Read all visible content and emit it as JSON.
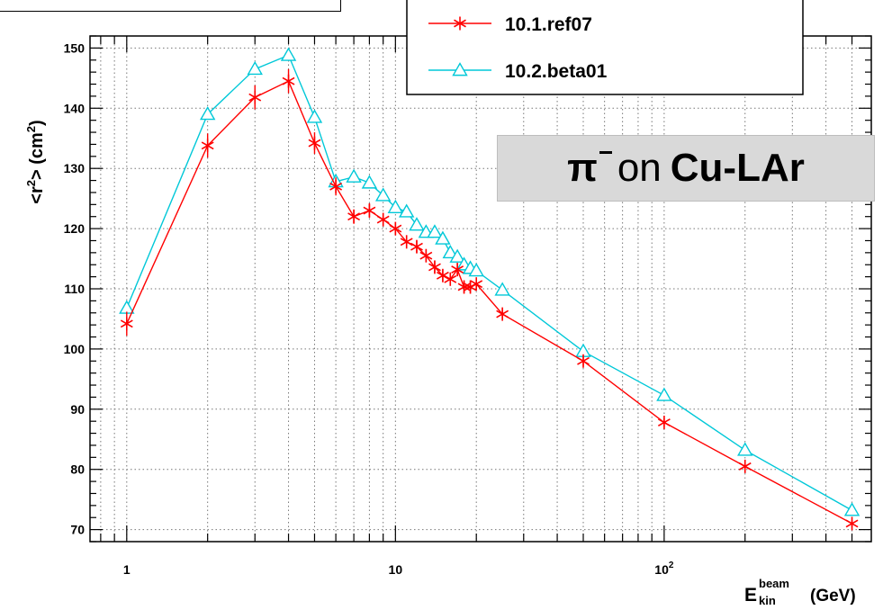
{
  "chart_data": {
    "type": "line",
    "title": "",
    "xlabel": "E_kin^beam (GeV)",
    "xlabel_parts": {
      "base": "E",
      "sup": "beam",
      "sub": "kin",
      "unit": "(GeV)"
    },
    "ylabel": "<r²> (cm²)",
    "ylabel_parts": {
      "pre": "<r",
      "sup1": "2",
      "mid": "> (cm",
      "sup2": "2",
      "post": ")"
    },
    "x_scale": "log",
    "xlim": [
      0.73,
      590
    ],
    "ylim": [
      68,
      152
    ],
    "x_ticks": [
      {
        "value": 1,
        "label": "1"
      },
      {
        "value": 10,
        "label": "10"
      },
      {
        "value": 100,
        "label": "10",
        "sup": "2"
      }
    ],
    "y_ticks": [
      70,
      80,
      90,
      100,
      110,
      120,
      130,
      140,
      150
    ],
    "grid": true,
    "legend_position": "top-center",
    "annotation": {
      "particle": "π",
      "word": "on",
      "target": "Cu-LAr"
    },
    "series": [
      {
        "name": "10.1.ref07",
        "color": "#ff0000",
        "marker": "star",
        "points": [
          {
            "x": 1,
            "y": 104.2,
            "err": 2.0
          },
          {
            "x": 2,
            "y": 133.8,
            "err": 2.0
          },
          {
            "x": 3,
            "y": 141.8,
            "err": 2.0
          },
          {
            "x": 4,
            "y": 144.5,
            "err": 2.0
          },
          {
            "x": 5,
            "y": 134.2,
            "err": 1.8
          },
          {
            "x": 6,
            "y": 127.0,
            "err": 1.5
          },
          {
            "x": 7,
            "y": 122.0,
            "err": 1.2
          },
          {
            "x": 8,
            "y": 123.0,
            "err": 1.2
          },
          {
            "x": 9,
            "y": 121.5,
            "err": 1.0
          },
          {
            "x": 10,
            "y": 120.0,
            "err": 1.0
          },
          {
            "x": 11,
            "y": 117.8,
            "err": 1.0
          },
          {
            "x": 12,
            "y": 117.0,
            "err": 1.0
          },
          {
            "x": 13,
            "y": 115.5,
            "err": 1.0
          },
          {
            "x": 14,
            "y": 113.6,
            "err": 1.0
          },
          {
            "x": 15,
            "y": 112.2,
            "err": 1.0
          },
          {
            "x": 16,
            "y": 111.6,
            "err": 1.0
          },
          {
            "x": 17,
            "y": 113.2,
            "err": 1.0
          },
          {
            "x": 18,
            "y": 110.3,
            "err": 1.0
          },
          {
            "x": 19,
            "y": 110.3,
            "err": 1.0
          },
          {
            "x": 20,
            "y": 110.8,
            "err": 1.0
          },
          {
            "x": 25,
            "y": 105.8,
            "err": 0.8
          },
          {
            "x": 50,
            "y": 98.0,
            "err": 0.8
          },
          {
            "x": 100,
            "y": 87.8,
            "err": 0.7
          },
          {
            "x": 200,
            "y": 80.5,
            "err": 0.6
          },
          {
            "x": 500,
            "y": 71.0,
            "err": 0.6
          }
        ]
      },
      {
        "name": "10.2.beta01",
        "color": "#00c8d8",
        "marker": "triangle",
        "points": [
          {
            "x": 1,
            "y": 106.8
          },
          {
            "x": 2,
            "y": 139.0
          },
          {
            "x": 3,
            "y": 146.5
          },
          {
            "x": 4,
            "y": 148.8
          },
          {
            "x": 5,
            "y": 138.5
          },
          {
            "x": 6,
            "y": 127.8
          },
          {
            "x": 7,
            "y": 128.6
          },
          {
            "x": 8,
            "y": 127.6
          },
          {
            "x": 9,
            "y": 125.5
          },
          {
            "x": 10,
            "y": 123.5
          },
          {
            "x": 11,
            "y": 122.8
          },
          {
            "x": 12,
            "y": 120.6
          },
          {
            "x": 13,
            "y": 119.4
          },
          {
            "x": 14,
            "y": 119.4
          },
          {
            "x": 15,
            "y": 118.3
          },
          {
            "x": 16,
            "y": 116.0
          },
          {
            "x": 17,
            "y": 115.3
          },
          {
            "x": 18,
            "y": 114.0
          },
          {
            "x": 19,
            "y": 113.4
          },
          {
            "x": 20,
            "y": 113.0
          },
          {
            "x": 25,
            "y": 109.8
          },
          {
            "x": 50,
            "y": 99.6
          },
          {
            "x": 100,
            "y": 92.3
          },
          {
            "x": 200,
            "y": 83.2
          },
          {
            "x": 500,
            "y": 73.2
          }
        ]
      }
    ]
  }
}
